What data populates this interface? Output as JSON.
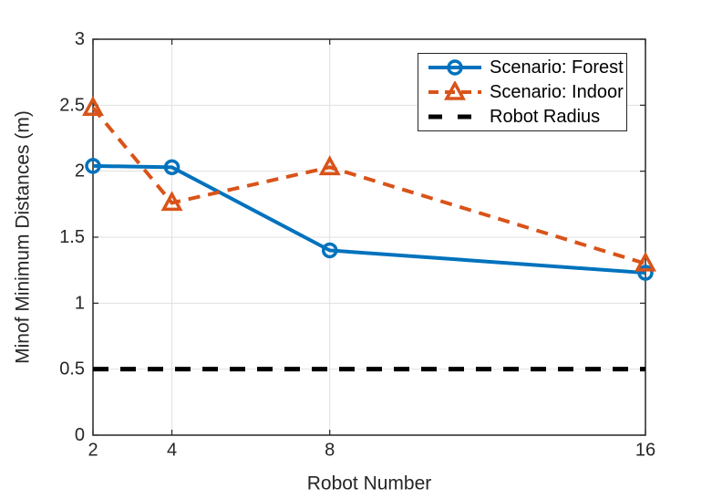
{
  "figure": {
    "background": "#ffffff",
    "axes_color": "#262626",
    "grid_color": "#e0e0e0",
    "tick_text_color": "#262626",
    "legend_text_color": "#000000"
  },
  "chart_data": {
    "type": "line",
    "title": "",
    "xlabel": "Robot Number",
    "ylabel": "Minof Minimum Distances (m)",
    "xlim": [
      2,
      16
    ],
    "ylim": [
      0,
      3
    ],
    "xticks": [
      2,
      4,
      8,
      16
    ],
    "xtick_labels": [
      "2",
      "4",
      "8",
      "16"
    ],
    "yticks": [
      0,
      0.5,
      1,
      1.5,
      2,
      2.5,
      3
    ],
    "ytick_labels": [
      "0",
      "0.5",
      "1",
      "1.5",
      "2",
      "2.5",
      "3"
    ],
    "grid": true,
    "legend_position": "top-right",
    "x": [
      2,
      4,
      8,
      16
    ],
    "series": [
      {
        "name": "Scenario: Forest",
        "color": "#0072BD",
        "line_style": "solid",
        "marker": "circle",
        "values": [
          2.04,
          2.03,
          1.4,
          1.23
        ]
      },
      {
        "name": "Scenario: Indoor",
        "color": "#D95319",
        "line_style": "dashed",
        "marker": "triangle-up",
        "values": [
          2.48,
          1.76,
          2.03,
          1.3
        ]
      },
      {
        "name": "Robot Radius",
        "color": "#000000",
        "line_style": "dashed",
        "marker": "none",
        "constant_y": 0.5
      }
    ]
  }
}
